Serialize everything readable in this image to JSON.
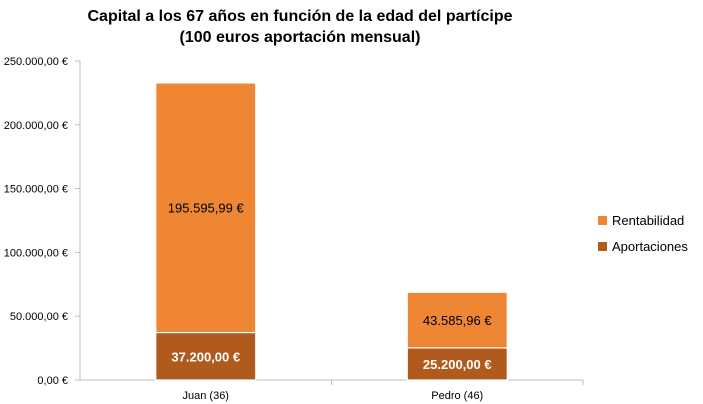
{
  "chart_data": {
    "type": "bar",
    "stacked": true,
    "title": "Capital a los 67 años en función de la edad del partícipe (100 euros aportación mensual)",
    "categories": [
      "Juan (36)",
      "Pedro (46)"
    ],
    "series": [
      {
        "name": "Aportaciones",
        "color": "#b05a1e",
        "values": [
          37200.0,
          25200.0
        ],
        "labels": [
          "37.200,00 €",
          "25.200,00 €"
        ]
      },
      {
        "name": "Rentabilidad",
        "color": "#ee8634",
        "values": [
          195595.99,
          43585.96
        ],
        "labels": [
          "195.595,99 €",
          "43.585,96 €"
        ]
      }
    ],
    "ylim": [
      0,
      250000
    ],
    "yticks": [
      0,
      50000,
      100000,
      150000,
      200000,
      250000
    ],
    "ytick_labels": [
      "0,00 €",
      "50.000,00 €",
      "100.000,00 €",
      "150.000,00 €",
      "200.000,00 €",
      "250.000,00 €"
    ],
    "grid": false,
    "legend_position": "right",
    "legend": [
      {
        "name": "Rentabilidad",
        "color": "#ee8634"
      },
      {
        "name": "Aportaciones",
        "color": "#b05a1e"
      }
    ]
  }
}
